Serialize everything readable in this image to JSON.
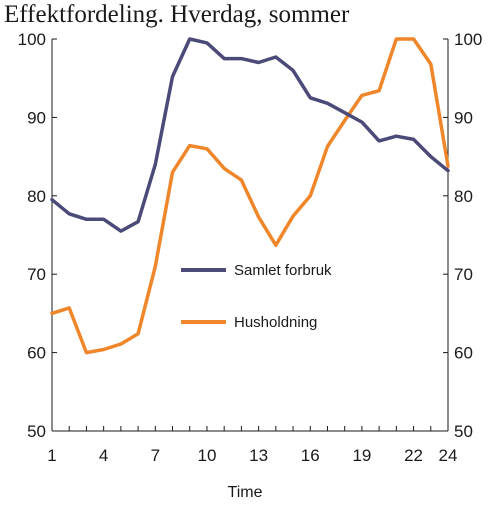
{
  "chart_data": {
    "type": "line",
    "title": "Effektfordeling. Hverdag, sommer",
    "xlabel": "Time",
    "ylabel": "",
    "ylim": [
      50,
      100
    ],
    "xlim": [
      1,
      24
    ],
    "yticks": [
      50,
      60,
      70,
      80,
      90,
      100
    ],
    "xticks": [
      1,
      4,
      7,
      10,
      13,
      16,
      19,
      22,
      24
    ],
    "grid": false,
    "legend_position": "center",
    "x": [
      1,
      2,
      3,
      4,
      5,
      6,
      7,
      8,
      9,
      10,
      11,
      12,
      13,
      14,
      15,
      16,
      17,
      18,
      19,
      20,
      21,
      22,
      23,
      24
    ],
    "series": [
      {
        "name": "Samlet forbruk",
        "color": "#4b4a78",
        "values": [
          79.5,
          77.7,
          77.0,
          77.0,
          75.5,
          76.7,
          84.0,
          95.2,
          100.0,
          99.5,
          97.5,
          97.5,
          97.0,
          97.7,
          96.0,
          92.5,
          91.8,
          90.6,
          89.4,
          87.0,
          87.6,
          87.2,
          85.0,
          83.2
        ]
      },
      {
        "name": "Husholdning",
        "color": "#f0862a",
        "values": [
          65.0,
          65.7,
          60.0,
          60.4,
          61.1,
          62.4,
          71.0,
          83.0,
          86.4,
          86.0,
          83.5,
          82.0,
          77.3,
          73.7,
          77.4,
          80.0,
          86.3,
          89.6,
          92.8,
          93.4,
          100.0,
          100.0,
          96.8,
          83.8
        ]
      }
    ]
  }
}
